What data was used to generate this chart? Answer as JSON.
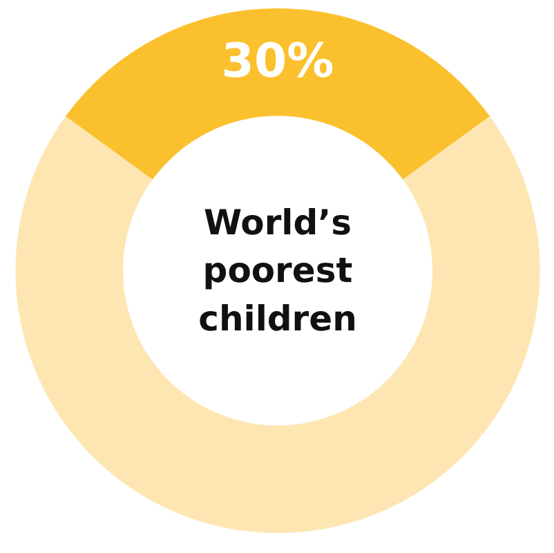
{
  "chart_data": {
    "type": "donut",
    "title": "World’s poorest children",
    "categories": [
      null,
      null
    ],
    "values": [
      30,
      70
    ],
    "colors": [
      "#fbc02d",
      "#fde6b2"
    ],
    "value_labels": [
      "30%",
      null
    ]
  }
}
